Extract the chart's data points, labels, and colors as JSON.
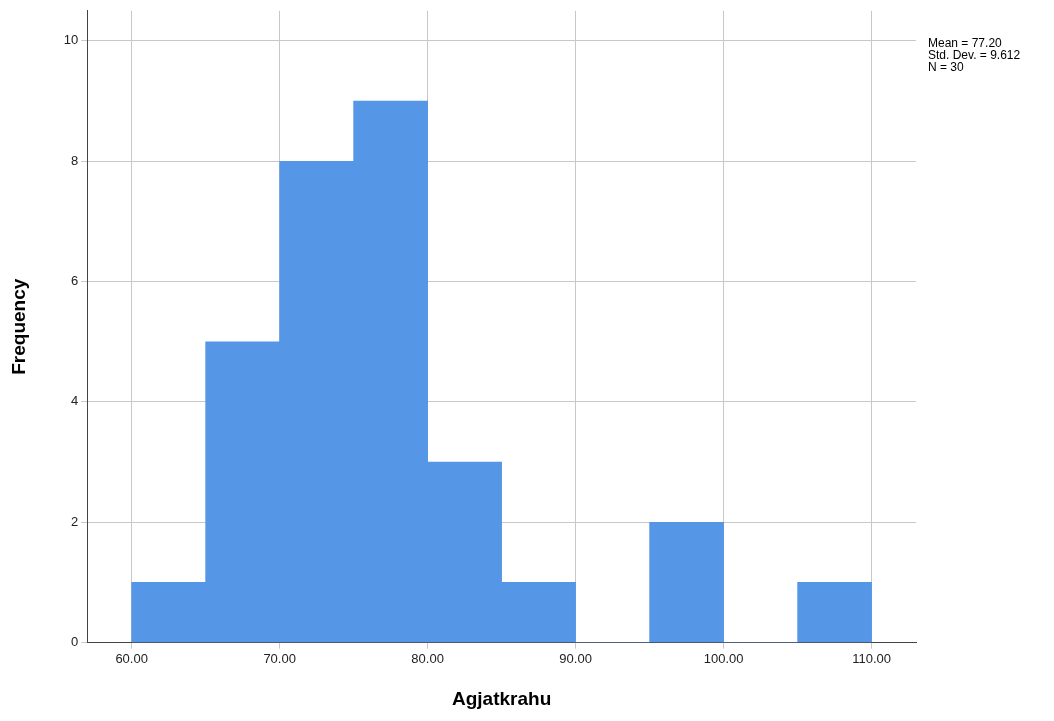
{
  "chart_data": {
    "type": "histogram",
    "xlabel": "Agjatkrahu",
    "ylabel": "Frequency",
    "bins": [
      60,
      65,
      70,
      75,
      80,
      85,
      90,
      95,
      100,
      105,
      110
    ],
    "values": [
      1,
      5,
      8,
      9,
      3,
      1,
      0,
      2,
      0,
      1
    ],
    "color": "#5596e6",
    "xlim": [
      57,
      113
    ],
    "ylim": [
      0,
      10.5
    ],
    "xticks": [
      {
        "value": 60,
        "label": "60.00"
      },
      {
        "value": 70,
        "label": "70.00"
      },
      {
        "value": 80,
        "label": "80.00"
      },
      {
        "value": 90,
        "label": "90.00"
      },
      {
        "value": 100,
        "label": "100.00"
      },
      {
        "value": 110,
        "label": "110.00"
      }
    ],
    "yticks": [
      0,
      2,
      4,
      6,
      8,
      10
    ],
    "grid": true,
    "annotations": [
      "Mean = 77.20",
      "Std. Dev. = 9.612",
      "N = 30"
    ]
  }
}
